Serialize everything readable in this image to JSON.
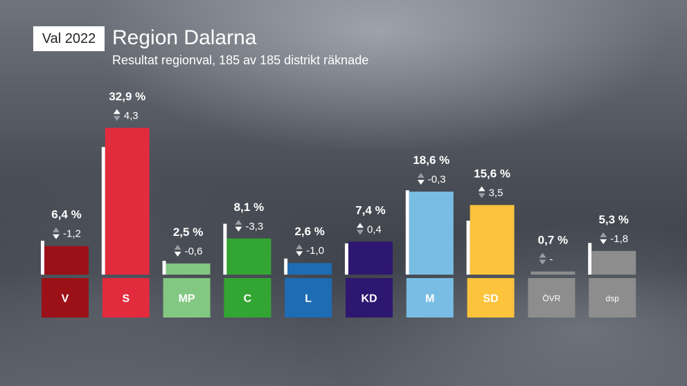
{
  "header": {
    "badge": "Val 2022",
    "title": "Region Dalarna",
    "subtitle": "Resultat regionval, 185 av 185 distrikt räknade"
  },
  "chart_data": {
    "type": "bar",
    "categories": [
      "V",
      "S",
      "MP",
      "C",
      "L",
      "KD",
      "M",
      "SD",
      "ÖVR",
      "dsp"
    ],
    "values": [
      6.4,
      32.9,
      2.5,
      8.1,
      2.6,
      7.4,
      18.6,
      15.6,
      0.7,
      5.3
    ],
    "value_labels": [
      "6,4 %",
      "32,9 %",
      "2,5 %",
      "8,1 %",
      "2,6 %",
      "7,4 %",
      "18,6 %",
      "15,6 %",
      "0,7 %",
      "5,3 %"
    ],
    "changes": [
      -1.2,
      4.3,
      -0.6,
      -3.3,
      -1.0,
      0.4,
      -0.3,
      3.5,
      null,
      -1.8
    ],
    "change_labels": [
      "-1,2",
      "4,3",
      "-0,6",
      "-3,3",
      "-1,0",
      "0,4",
      "-0,3",
      "3,5",
      "-",
      "-1,8"
    ],
    "previous_values": [
      7.6,
      28.6,
      3.1,
      11.4,
      3.6,
      7.0,
      18.9,
      12.1,
      null,
      7.1
    ],
    "colors": [
      "#9b1117",
      "#e22b3c",
      "#83c882",
      "#33a532",
      "#1e6cb3",
      "#2e1770",
      "#79bde4",
      "#fcc33c",
      "#8d8d8d",
      "#8d8d8d"
    ],
    "label_text_colors": [
      "#ffffff",
      "#ffffff",
      "#ffffff",
      "#ffffff",
      "#ffffff",
      "#ffffff",
      "#ffffff",
      "#ffffff",
      "#ffffff",
      "#ffffff"
    ],
    "ylim": [
      0,
      33
    ]
  }
}
